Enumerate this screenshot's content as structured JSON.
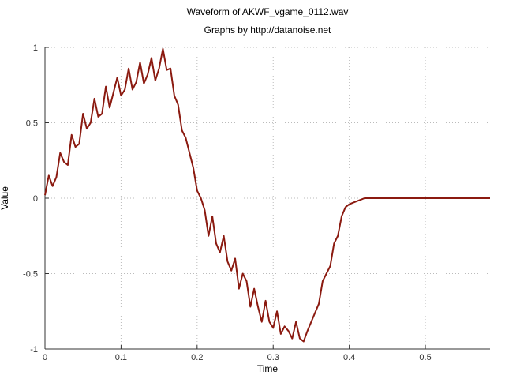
{
  "chart_data": {
    "type": "line",
    "title": "Waveform of AKWF_vgame_0112.wav",
    "subtitle": "Graphs by http://datanoise.net",
    "xlabel": "Time",
    "ylabel": "Value",
    "xlim": [
      0,
      0.585
    ],
    "ylim": [
      -1,
      1
    ],
    "x_ticks": [
      "0",
      "0.1",
      "0.2",
      "0.3",
      "0.4",
      "0.5"
    ],
    "y_ticks": [
      "1",
      "0.5",
      "0",
      "-0.5",
      "-1"
    ],
    "grid": true,
    "line_color": "#8b1a10",
    "series": [
      {
        "x": [
          0,
          0.005,
          0.01,
          0.015,
          0.02,
          0.025,
          0.03,
          0.035,
          0.04,
          0.045,
          0.05,
          0.055,
          0.06,
          0.065,
          0.07,
          0.075,
          0.08,
          0.085,
          0.09,
          0.095,
          0.1,
          0.105,
          0.11,
          0.115,
          0.12,
          0.125,
          0.13,
          0.135,
          0.14,
          0.145,
          0.15,
          0.155,
          0.16,
          0.165,
          0.17,
          0.175,
          0.18,
          0.185,
          0.19,
          0.195,
          0.2,
          0.205,
          0.21,
          0.215,
          0.22,
          0.225,
          0.23,
          0.235,
          0.24,
          0.245,
          0.25,
          0.255,
          0.26,
          0.265,
          0.27,
          0.275,
          0.28,
          0.285,
          0.29,
          0.295,
          0.3,
          0.305,
          0.31,
          0.315,
          0.32,
          0.325,
          0.33,
          0.335,
          0.34,
          0.345,
          0.35,
          0.355,
          0.36,
          0.365,
          0.37,
          0.375,
          0.38,
          0.385,
          0.39,
          0.395,
          0.4,
          0.405,
          0.41,
          0.415,
          0.42,
          0.425,
          0.43,
          0.435,
          0.44,
          0.445,
          0.45,
          0.455,
          0.46,
          0.465,
          0.47,
          0.475,
          0.48,
          0.485,
          0.49,
          0.495,
          0.5,
          0.505,
          0.51,
          0.515,
          0.52,
          0.525,
          0.53,
          0.535,
          0.54,
          0.545,
          0.55,
          0.555,
          0.56,
          0.565,
          0.57,
          0.575,
          0.58,
          0.585
        ],
        "values": [
          0.02,
          0.15,
          0.08,
          0.14,
          0.3,
          0.24,
          0.22,
          0.42,
          0.34,
          0.36,
          0.56,
          0.46,
          0.5,
          0.66,
          0.54,
          0.56,
          0.74,
          0.6,
          0.7,
          0.8,
          0.68,
          0.72,
          0.86,
          0.72,
          0.77,
          0.9,
          0.76,
          0.82,
          0.93,
          0.78,
          0.86,
          0.99,
          0.85,
          0.86,
          0.68,
          0.62,
          0.45,
          0.4,
          0.3,
          0.2,
          0.05,
          0.0,
          -0.08,
          -0.25,
          -0.12,
          -0.3,
          -0.36,
          -0.25,
          -0.42,
          -0.48,
          -0.4,
          -0.6,
          -0.5,
          -0.55,
          -0.72,
          -0.6,
          -0.72,
          -0.82,
          -0.68,
          -0.82,
          -0.86,
          -0.75,
          -0.9,
          -0.85,
          -0.88,
          -0.93,
          -0.82,
          -0.93,
          -0.95,
          -0.88,
          -0.82,
          -0.76,
          -0.7,
          -0.55,
          -0.5,
          -0.45,
          -0.3,
          -0.25,
          -0.12,
          -0.06,
          -0.04,
          -0.03,
          -0.02,
          -0.01,
          0.0,
          0.0,
          0.0,
          0.0,
          0.0,
          0.0,
          0.0,
          0.0,
          0.0,
          0.0,
          0.0,
          0.0,
          0.0,
          0.0,
          0.0,
          0.0,
          0.0,
          0.0,
          0.0,
          0.0,
          0.0,
          0.0,
          0.0,
          0.0,
          0.0,
          0.0,
          0.0,
          0.0,
          0.0,
          0.0,
          0.0,
          0.0,
          0.0,
          0.0
        ]
      }
    ]
  }
}
